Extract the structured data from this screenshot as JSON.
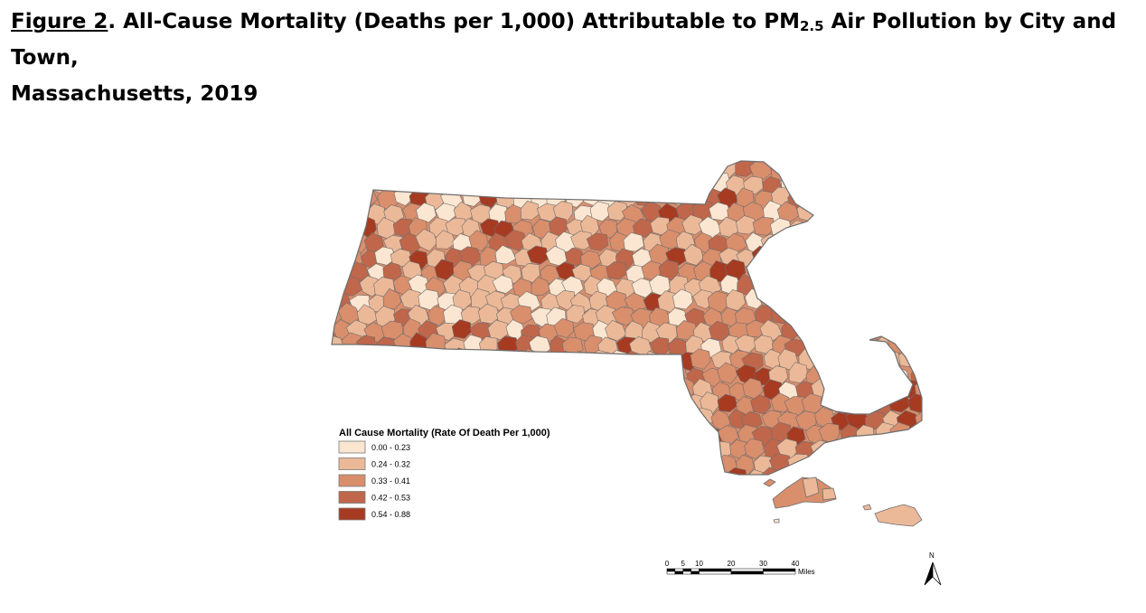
{
  "title": {
    "figure_label": "Figure 2",
    "text_before_sub": ". All-Cause Mortality (Deaths per 1,000) Attributable to PM",
    "subscript": "2.5",
    "text_after_sub": " Air Pollution by City and Town,",
    "line2": "Massachusetts, 2019"
  },
  "legend": {
    "title": "All Cause Mortality (Rate Of Death Per 1,000)",
    "classes": [
      {
        "label": "0.00 - 0.23",
        "color": "#fbe6d1"
      },
      {
        "label": "0.24 - 0.32",
        "color": "#ecb998"
      },
      {
        "label": "0.33 - 0.41",
        "color": "#d98e6c"
      },
      {
        "label": "0.42 - 0.53",
        "color": "#c0664a"
      },
      {
        "label": "0.54 - 0.88",
        "color": "#a63b22"
      }
    ]
  },
  "scale_bar": {
    "ticks": [
      "0",
      "5",
      "10",
      "20",
      "30",
      "40"
    ],
    "unit": "Miles"
  },
  "north_arrow": {
    "label": "N"
  },
  "colors": {
    "boundary": "#6e6e6e"
  }
}
